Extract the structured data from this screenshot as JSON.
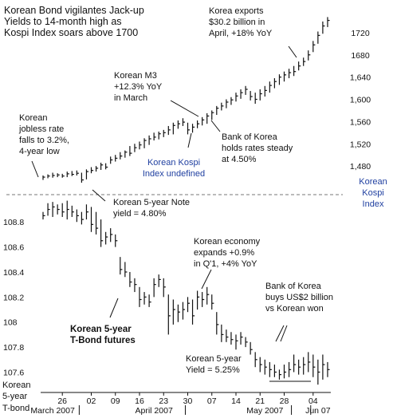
{
  "chart_data": {
    "type": "bar",
    "title": "Korean Bond vigilantes Jack-up Yields to 14-month high as Kospi Index soars above 1700",
    "panels": [
      {
        "name": "Korean Kospi Index",
        "axis_label": "Korean Kospi Index",
        "axis_side": "right",
        "ylim": [
          1440,
          1750
        ],
        "y_ticks": [
          1480,
          1520,
          1560,
          1600,
          1640,
          1680,
          1720
        ],
        "y_tick_labels": [
          "1,480",
          "1,520",
          "1,560",
          "1,600",
          "1,640",
          "1680",
          "1720"
        ],
        "bars": [
          [
            1463,
            1455,
            1460
          ],
          [
            1465,
            1458,
            1462
          ],
          [
            1468,
            1459,
            1463
          ],
          [
            1467,
            1460,
            1464
          ],
          [
            1466,
            1459,
            1462
          ],
          [
            1470,
            1460,
            1466
          ],
          [
            1471,
            1462,
            1465
          ],
          [
            1472,
            1463,
            1467
          ],
          [
            1468,
            1450,
            1455
          ],
          [
            1474,
            1456,
            1470
          ],
          [
            1478,
            1467,
            1472
          ],
          [
            1480,
            1470,
            1476
          ],
          [
            1486,
            1473,
            1482
          ],
          [
            1485,
            1474,
            1478
          ],
          [
            1497,
            1484,
            1491
          ],
          [
            1500,
            1488,
            1494
          ],
          [
            1505,
            1492,
            1498
          ],
          [
            1508,
            1495,
            1505
          ],
          [
            1516,
            1498,
            1503
          ],
          [
            1520,
            1505,
            1513
          ],
          [
            1524,
            1510,
            1518
          ],
          [
            1530,
            1512,
            1526
          ],
          [
            1535,
            1518,
            1529
          ],
          [
            1540,
            1526,
            1532
          ],
          [
            1542,
            1528,
            1538
          ],
          [
            1545,
            1532,
            1540
          ],
          [
            1552,
            1536,
            1545
          ],
          [
            1558,
            1537,
            1553
          ],
          [
            1562,
            1547,
            1556
          ],
          [
            1566,
            1552,
            1559
          ],
          [
            1558,
            1537,
            1545
          ],
          [
            1556,
            1540,
            1550
          ],
          [
            1562,
            1548,
            1556
          ],
          [
            1568,
            1553,
            1563
          ],
          [
            1575,
            1556,
            1570
          ],
          [
            1580,
            1563,
            1576
          ],
          [
            1588,
            1572,
            1584
          ],
          [
            1594,
            1580,
            1588
          ],
          [
            1600,
            1584,
            1595
          ],
          [
            1604,
            1590,
            1599
          ],
          [
            1612,
            1596,
            1606
          ],
          [
            1618,
            1601,
            1612
          ],
          [
            1624,
            1608,
            1618
          ],
          [
            1615,
            1598,
            1605
          ],
          [
            1612,
            1592,
            1600
          ],
          [
            1618,
            1598,
            1610
          ],
          [
            1624,
            1605,
            1616
          ],
          [
            1632,
            1612,
            1625
          ],
          [
            1638,
            1620,
            1632
          ],
          [
            1645,
            1626,
            1640
          ],
          [
            1650,
            1632,
            1644
          ],
          [
            1655,
            1638,
            1648
          ],
          [
            1660,
            1642,
            1650
          ],
          [
            1668,
            1652,
            1660
          ],
          [
            1675,
            1660,
            1668
          ],
          [
            1688,
            1670,
            1680
          ],
          [
            1705,
            1685,
            1698
          ],
          [
            1722,
            1700,
            1715
          ],
          [
            1740,
            1718,
            1732
          ],
          [
            1748,
            1730,
            1742
          ]
        ]
      },
      {
        "name": "Korean 5-year T-Bond futures",
        "axis_label": "Korean 5-year T-bond",
        "axis_side": "left",
        "ylim": [
          107.45,
          108.98
        ],
        "y_ticks": [
          107.6,
          107.8,
          108,
          108.2,
          108.4,
          108.6,
          108.8
        ],
        "y_tick_labels": [
          "107.6",
          "107.8",
          "108",
          "108.2",
          "108.4",
          "108.6",
          "108.8"
        ],
        "bars": [
          [
            108.88,
            108.82,
            108.85
          ],
          [
            108.95,
            108.85,
            108.9
          ],
          [
            108.96,
            108.84,
            108.92
          ],
          [
            108.94,
            108.86,
            108.9
          ],
          [
            108.95,
            108.84,
            108.88
          ],
          [
            108.97,
            108.82,
            108.9
          ],
          [
            108.93,
            108.84,
            108.88
          ],
          [
            108.9,
            108.8,
            108.85
          ],
          [
            108.88,
            108.78,
            108.82
          ],
          [
            108.94,
            108.82,
            108.88
          ],
          [
            108.92,
            108.72,
            108.78
          ],
          [
            108.88,
            108.7,
            108.75
          ],
          [
            108.82,
            108.6,
            108.65
          ],
          [
            108.72,
            108.62,
            108.68
          ],
          [
            108.75,
            108.64,
            108.7
          ],
          [
            108.7,
            108.6,
            108.65
          ],
          [
            108.52,
            108.38,
            108.42
          ],
          [
            108.48,
            108.36,
            108.4
          ],
          [
            108.4,
            108.28,
            108.32
          ],
          [
            108.35,
            108.24,
            108.3
          ],
          [
            108.28,
            108.12,
            108.18
          ],
          [
            108.24,
            108.14,
            108.2
          ],
          [
            108.22,
            108.12,
            108.16
          ],
          [
            108.35,
            108.2,
            108.3
          ],
          [
            108.38,
            108.28,
            108.34
          ],
          [
            108.35,
            108.2,
            108.28
          ],
          [
            108.22,
            107.9,
            108.05
          ],
          [
            108.18,
            107.98,
            108.1
          ],
          [
            108.14,
            108.0,
            108.08
          ],
          [
            108.16,
            108.02,
            108.1
          ],
          [
            108.2,
            108.08,
            108.15
          ],
          [
            108.18,
            107.98,
            108.05
          ],
          [
            108.25,
            108.1,
            108.2
          ],
          [
            108.24,
            108.12,
            108.18
          ],
          [
            108.28,
            108.14,
            108.22
          ],
          [
            108.22,
            108.1,
            108.15
          ],
          [
            108.08,
            107.9,
            107.98
          ],
          [
            107.98,
            107.84,
            107.9
          ],
          [
            107.94,
            107.84,
            107.88
          ],
          [
            107.92,
            107.82,
            107.86
          ],
          [
            107.9,
            107.78,
            107.85
          ],
          [
            107.92,
            107.82,
            107.88
          ],
          [
            107.88,
            107.8,
            107.84
          ],
          [
            107.84,
            107.74,
            107.78
          ],
          [
            107.76,
            107.64,
            107.7
          ],
          [
            107.72,
            107.6,
            107.66
          ],
          [
            107.7,
            107.58,
            107.64
          ],
          [
            107.68,
            107.56,
            107.62
          ],
          [
            107.66,
            107.56,
            107.6
          ],
          [
            107.62,
            107.54,
            107.58
          ],
          [
            107.66,
            107.55,
            107.6
          ],
          [
            107.68,
            107.56,
            107.62
          ],
          [
            107.74,
            107.6,
            107.66
          ],
          [
            107.7,
            107.58,
            107.64
          ],
          [
            107.72,
            107.58,
            107.66
          ],
          [
            107.76,
            107.6,
            107.68
          ],
          [
            107.74,
            107.56,
            107.64
          ],
          [
            107.7,
            107.5,
            107.6
          ],
          [
            107.74,
            107.54,
            107.66
          ],
          [
            107.68,
            107.56,
            107.62
          ]
        ]
      }
    ],
    "x_tick_labels": [
      "26",
      "02",
      "09",
      "16",
      "23",
      "30",
      "07",
      "14",
      "21",
      "28",
      "04"
    ],
    "x_tick_bar_index": [
      4,
      10,
      15,
      20,
      25,
      30,
      35,
      40,
      45,
      50,
      56
    ],
    "month_labels": [
      "March 2007",
      "April 2007",
      "May 2007",
      "Jun 07"
    ],
    "month_label_bar_index": [
      2,
      23,
      46,
      57
    ],
    "month_separator_bar_index": [
      7.5,
      29.5,
      51.5,
      55.5
    ],
    "annotations": {
      "kospi": [
        "Korean\njobless rate\nfalls to 3.2%,\n4-year low",
        "Korean M3\n+12.3% YoY\nin March",
        "Korea exports\n$30.2 billion in\nApril, +18% YoY",
        "Bank of Korea\nholds rates steady\nat 4.50%"
      ],
      "bond": [
        "Korean 5-year Note\nyield = 4.80%",
        "Korean economy\nexpands +0.9%\nin Q'1, +4% YoY",
        "Bank of Korea\nbuys US$2 billion\nvs Korean won",
        "Korean 5-year\nT-Bond futures",
        "Korean 5-year\nYield = 5.25%"
      ]
    },
    "colors": {
      "bars": "#111111",
      "axis_label_kospi": "#1f3fa0",
      "text": "#111111",
      "divider": "#777777"
    }
  }
}
